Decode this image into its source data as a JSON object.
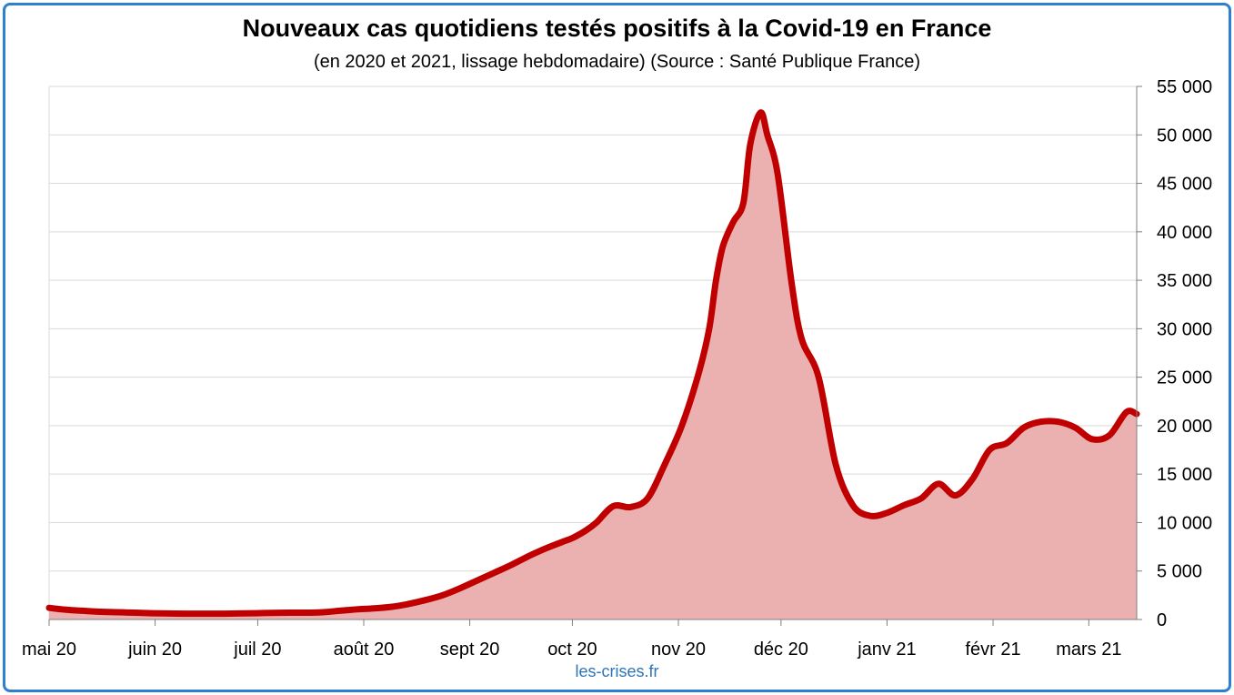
{
  "chart_data": {
    "type": "area",
    "title": "Nouveaux cas quotidiens testés positifs à la Covid-19 en France",
    "subtitle": "(en 2020 et 2021, lissage hebdomadaire) (Source : Santé Publique France)",
    "source": "les-crises.fr",
    "xlabel": "",
    "ylabel": "",
    "x_unit": "days since 1 May 2020",
    "xlim": [
      0,
      318
    ],
    "ylim": [
      0,
      55000
    ],
    "y_ticks": [
      0,
      5000,
      10000,
      15000,
      20000,
      25000,
      30000,
      35000,
      40000,
      45000,
      50000,
      55000
    ],
    "y_tick_labels": [
      "0",
      "5 000",
      "10 000",
      "15 000",
      "20 000",
      "25 000",
      "30 000",
      "35 000",
      "40 000",
      "45 000",
      "50 000",
      "55 000"
    ],
    "x_ticks": [
      0,
      31,
      61,
      92,
      123,
      153,
      184,
      214,
      245,
      276,
      304
    ],
    "x_tick_labels": [
      "mai 20",
      "juin 20",
      "juil 20",
      "août 20",
      "sept 20",
      "oct 20",
      "nov 20",
      "déc 20",
      "janv 21",
      "févr 21",
      "mars 21"
    ],
    "grid": true,
    "colors": {
      "line": "#c00000",
      "fill": "#ebb1b1",
      "grid": "#d9d9d9",
      "frame": "#2f7fd0",
      "source": "#2e74b5"
    },
    "series": [
      {
        "name": "Nouveaux cas quotidiens (lissage hebdomadaire)",
        "x": [
          0,
          5,
          10,
          15,
          20,
          25,
          30,
          35,
          40,
          45,
          50,
          55,
          60,
          65,
          70,
          75,
          80,
          85,
          90,
          95,
          100,
          105,
          110,
          115,
          120,
          125,
          130,
          135,
          140,
          145,
          150,
          153,
          157,
          160,
          165,
          170,
          175,
          180,
          185,
          190,
          193,
          195,
          197,
          200,
          203,
          205,
          208,
          210,
          213,
          217,
          220,
          225,
          230,
          235,
          240,
          245,
          250,
          255,
          260,
          265,
          270,
          275,
          280,
          285,
          290,
          295,
          300,
          305,
          310,
          315,
          318
        ],
        "values": [
          1200,
          1000,
          900,
          800,
          750,
          700,
          650,
          620,
          600,
          600,
          600,
          620,
          650,
          680,
          700,
          700,
          750,
          900,
          1050,
          1150,
          1300,
          1600,
          2000,
          2500,
          3200,
          4000,
          4800,
          5600,
          6500,
          7300,
          8000,
          8400,
          9200,
          10000,
          11700,
          11600,
          12500,
          16000,
          20000,
          25500,
          30000,
          35000,
          38500,
          41000,
          43000,
          49000,
          52300,
          50000,
          46000,
          35000,
          29000,
          25000,
          16000,
          11800,
          10700,
          11000,
          11800,
          12500,
          14000,
          12800,
          14500,
          17500,
          18200,
          19800,
          20400,
          20400,
          19800,
          18600,
          19000,
          21400,
          21200
        ]
      }
    ]
  }
}
